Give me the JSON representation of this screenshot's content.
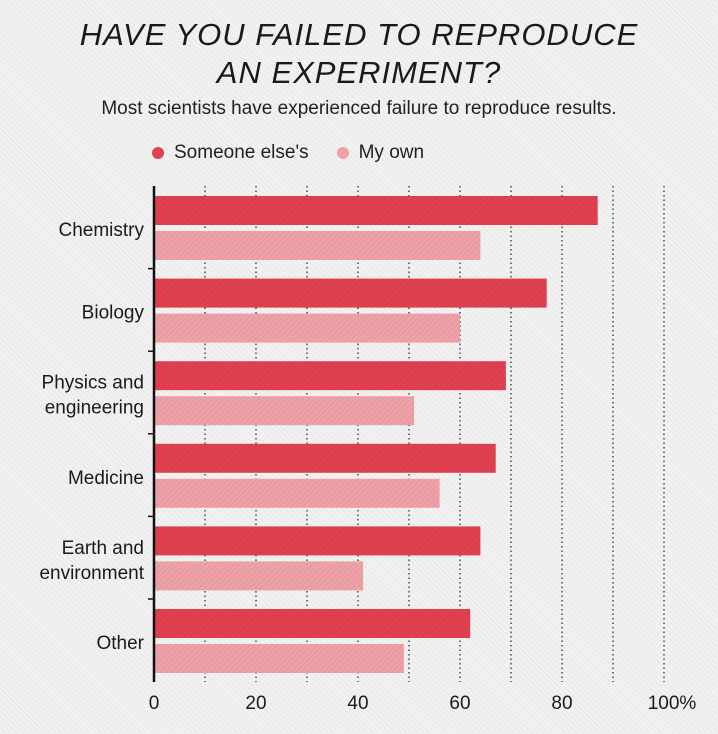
{
  "colors": {
    "someone_else": "#e0404f",
    "my_own": "#eea1a6",
    "axis": "#111111",
    "grid": "#222222"
  },
  "chart_data": {
    "type": "bar",
    "orientation": "horizontal",
    "title_line1": "HAVE YOU FAILED TO REPRODUCE",
    "title_line2": "AN EXPERIMENT?",
    "subtitle": "Most scientists have experienced failure to reproduce results.",
    "xlabel": "",
    "ylabel": "",
    "xlim": [
      0,
      100
    ],
    "x_ticks": [
      "0",
      "20",
      "40",
      "60",
      "80",
      "100%"
    ],
    "grid": "vertical dotted every 10",
    "legend_position": "top-left",
    "categories": [
      [
        "Chemistry"
      ],
      [
        "Biology"
      ],
      [
        "Physics and",
        "engineering"
      ],
      [
        "Medicine"
      ],
      [
        "Earth and",
        "environment"
      ],
      [
        "Other"
      ]
    ],
    "series": [
      {
        "name": "Someone else's",
        "values": [
          87,
          77,
          69,
          67,
          64,
          62
        ]
      },
      {
        "name": "My own",
        "values": [
          64,
          60,
          51,
          56,
          41,
          49
        ]
      }
    ]
  }
}
